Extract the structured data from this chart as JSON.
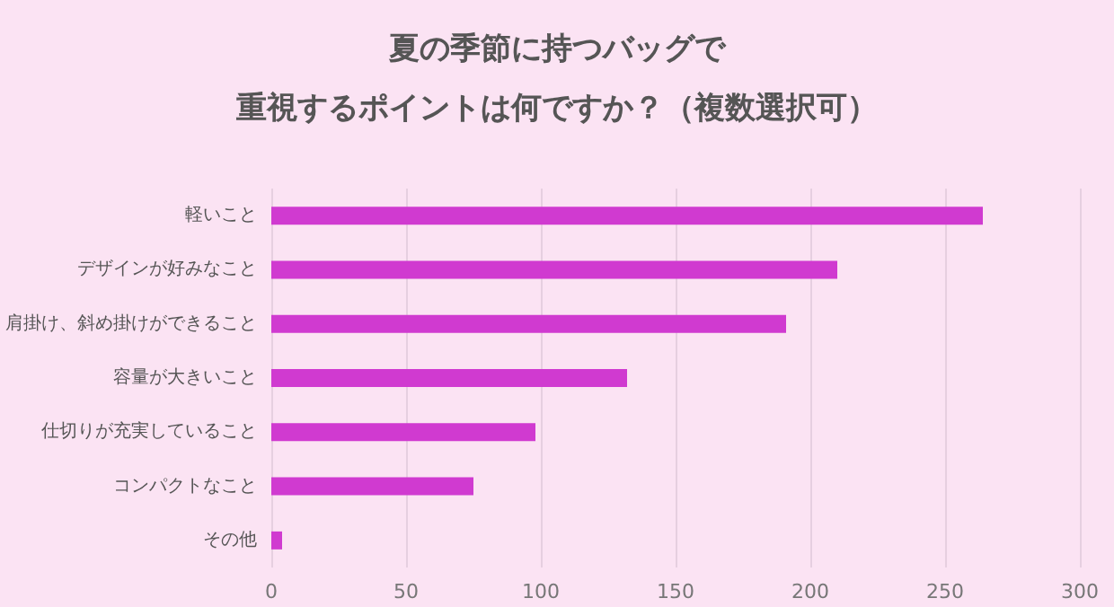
{
  "chart_data": {
    "type": "bar",
    "orientation": "horizontal",
    "title": "夏の季節に持つバッグで",
    "subtitle": "重視するポイントは何ですか？（複数選択可）",
    "categories": [
      "軽いこと",
      "デザインが好みなこと",
      "肩掛け、斜め掛けができること",
      "容量が大きいこと",
      "仕切りが充実していること",
      "コンパクトなこと",
      "その他"
    ],
    "values": [
      264,
      210,
      191,
      132,
      98,
      75,
      4
    ],
    "color": "#d03ad0",
    "xlim": [
      0,
      300
    ],
    "xticks": [
      0,
      50,
      100,
      150,
      200,
      250,
      300
    ],
    "grid": "x"
  }
}
